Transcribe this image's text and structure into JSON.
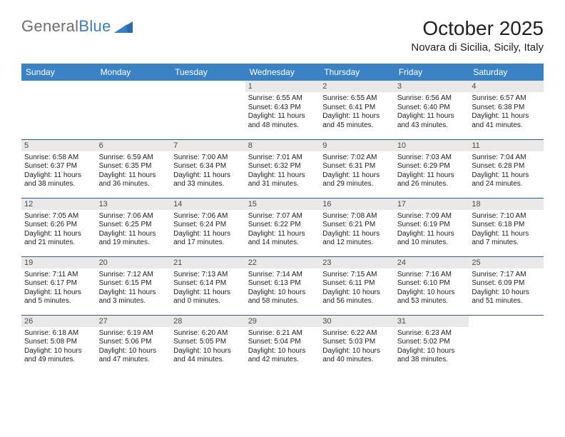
{
  "logo": {
    "text1": "General",
    "text2": "Blue"
  },
  "title": "October 2025",
  "location": "Novara di Sicilia, Sicily, Italy",
  "colors": {
    "header_bg": "#3b82c4",
    "header_fg": "#ffffff",
    "daynum_bg": "#e9e9e9",
    "daynum_fg": "#4a4a4a",
    "row_border": "#2d5f8f",
    "text": "#202020",
    "logo_gray": "#6e6e6e",
    "logo_blue": "#3a7fc0",
    "page_bg": "#ffffff"
  },
  "typography": {
    "title_fontsize": 28,
    "location_fontsize": 15,
    "weekday_fontsize": 12,
    "daynum_fontsize": 11,
    "info_fontsize": 10,
    "font_family": "Arial"
  },
  "weekdays": [
    "Sunday",
    "Monday",
    "Tuesday",
    "Wednesday",
    "Thursday",
    "Friday",
    "Saturday"
  ],
  "weeks": [
    [
      {
        "day": "",
        "sunrise": "",
        "sunset": "",
        "daylight": ""
      },
      {
        "day": "",
        "sunrise": "",
        "sunset": "",
        "daylight": ""
      },
      {
        "day": "",
        "sunrise": "",
        "sunset": "",
        "daylight": ""
      },
      {
        "day": "1",
        "sunrise": "Sunrise: 6:55 AM",
        "sunset": "Sunset: 6:43 PM",
        "daylight": "Daylight: 11 hours and 48 minutes."
      },
      {
        "day": "2",
        "sunrise": "Sunrise: 6:55 AM",
        "sunset": "Sunset: 6:41 PM",
        "daylight": "Daylight: 11 hours and 45 minutes."
      },
      {
        "day": "3",
        "sunrise": "Sunrise: 6:56 AM",
        "sunset": "Sunset: 6:40 PM",
        "daylight": "Daylight: 11 hours and 43 minutes."
      },
      {
        "day": "4",
        "sunrise": "Sunrise: 6:57 AM",
        "sunset": "Sunset: 6:38 PM",
        "daylight": "Daylight: 11 hours and 41 minutes."
      }
    ],
    [
      {
        "day": "5",
        "sunrise": "Sunrise: 6:58 AM",
        "sunset": "Sunset: 6:37 PM",
        "daylight": "Daylight: 11 hours and 38 minutes."
      },
      {
        "day": "6",
        "sunrise": "Sunrise: 6:59 AM",
        "sunset": "Sunset: 6:35 PM",
        "daylight": "Daylight: 11 hours and 36 minutes."
      },
      {
        "day": "7",
        "sunrise": "Sunrise: 7:00 AM",
        "sunset": "Sunset: 6:34 PM",
        "daylight": "Daylight: 11 hours and 33 minutes."
      },
      {
        "day": "8",
        "sunrise": "Sunrise: 7:01 AM",
        "sunset": "Sunset: 6:32 PM",
        "daylight": "Daylight: 11 hours and 31 minutes."
      },
      {
        "day": "9",
        "sunrise": "Sunrise: 7:02 AM",
        "sunset": "Sunset: 6:31 PM",
        "daylight": "Daylight: 11 hours and 29 minutes."
      },
      {
        "day": "10",
        "sunrise": "Sunrise: 7:03 AM",
        "sunset": "Sunset: 6:29 PM",
        "daylight": "Daylight: 11 hours and 26 minutes."
      },
      {
        "day": "11",
        "sunrise": "Sunrise: 7:04 AM",
        "sunset": "Sunset: 6:28 PM",
        "daylight": "Daylight: 11 hours and 24 minutes."
      }
    ],
    [
      {
        "day": "12",
        "sunrise": "Sunrise: 7:05 AM",
        "sunset": "Sunset: 6:26 PM",
        "daylight": "Daylight: 11 hours and 21 minutes."
      },
      {
        "day": "13",
        "sunrise": "Sunrise: 7:06 AM",
        "sunset": "Sunset: 6:25 PM",
        "daylight": "Daylight: 11 hours and 19 minutes."
      },
      {
        "day": "14",
        "sunrise": "Sunrise: 7:06 AM",
        "sunset": "Sunset: 6:24 PM",
        "daylight": "Daylight: 11 hours and 17 minutes."
      },
      {
        "day": "15",
        "sunrise": "Sunrise: 7:07 AM",
        "sunset": "Sunset: 6:22 PM",
        "daylight": "Daylight: 11 hours and 14 minutes."
      },
      {
        "day": "16",
        "sunrise": "Sunrise: 7:08 AM",
        "sunset": "Sunset: 6:21 PM",
        "daylight": "Daylight: 11 hours and 12 minutes."
      },
      {
        "day": "17",
        "sunrise": "Sunrise: 7:09 AM",
        "sunset": "Sunset: 6:19 PM",
        "daylight": "Daylight: 11 hours and 10 minutes."
      },
      {
        "day": "18",
        "sunrise": "Sunrise: 7:10 AM",
        "sunset": "Sunset: 6:18 PM",
        "daylight": "Daylight: 11 hours and 7 minutes."
      }
    ],
    [
      {
        "day": "19",
        "sunrise": "Sunrise: 7:11 AM",
        "sunset": "Sunset: 6:17 PM",
        "daylight": "Daylight: 11 hours and 5 minutes."
      },
      {
        "day": "20",
        "sunrise": "Sunrise: 7:12 AM",
        "sunset": "Sunset: 6:15 PM",
        "daylight": "Daylight: 11 hours and 3 minutes."
      },
      {
        "day": "21",
        "sunrise": "Sunrise: 7:13 AM",
        "sunset": "Sunset: 6:14 PM",
        "daylight": "Daylight: 11 hours and 0 minutes."
      },
      {
        "day": "22",
        "sunrise": "Sunrise: 7:14 AM",
        "sunset": "Sunset: 6:13 PM",
        "daylight": "Daylight: 10 hours and 58 minutes."
      },
      {
        "day": "23",
        "sunrise": "Sunrise: 7:15 AM",
        "sunset": "Sunset: 6:11 PM",
        "daylight": "Daylight: 10 hours and 56 minutes."
      },
      {
        "day": "24",
        "sunrise": "Sunrise: 7:16 AM",
        "sunset": "Sunset: 6:10 PM",
        "daylight": "Daylight: 10 hours and 53 minutes."
      },
      {
        "day": "25",
        "sunrise": "Sunrise: 7:17 AM",
        "sunset": "Sunset: 6:09 PM",
        "daylight": "Daylight: 10 hours and 51 minutes."
      }
    ],
    [
      {
        "day": "26",
        "sunrise": "Sunrise: 6:18 AM",
        "sunset": "Sunset: 5:08 PM",
        "daylight": "Daylight: 10 hours and 49 minutes."
      },
      {
        "day": "27",
        "sunrise": "Sunrise: 6:19 AM",
        "sunset": "Sunset: 5:06 PM",
        "daylight": "Daylight: 10 hours and 47 minutes."
      },
      {
        "day": "28",
        "sunrise": "Sunrise: 6:20 AM",
        "sunset": "Sunset: 5:05 PM",
        "daylight": "Daylight: 10 hours and 44 minutes."
      },
      {
        "day": "29",
        "sunrise": "Sunrise: 6:21 AM",
        "sunset": "Sunset: 5:04 PM",
        "daylight": "Daylight: 10 hours and 42 minutes."
      },
      {
        "day": "30",
        "sunrise": "Sunrise: 6:22 AM",
        "sunset": "Sunset: 5:03 PM",
        "daylight": "Daylight: 10 hours and 40 minutes."
      },
      {
        "day": "31",
        "sunrise": "Sunrise: 6:23 AM",
        "sunset": "Sunset: 5:02 PM",
        "daylight": "Daylight: 10 hours and 38 minutes."
      },
      {
        "day": "",
        "sunrise": "",
        "sunset": "",
        "daylight": ""
      }
    ]
  ]
}
